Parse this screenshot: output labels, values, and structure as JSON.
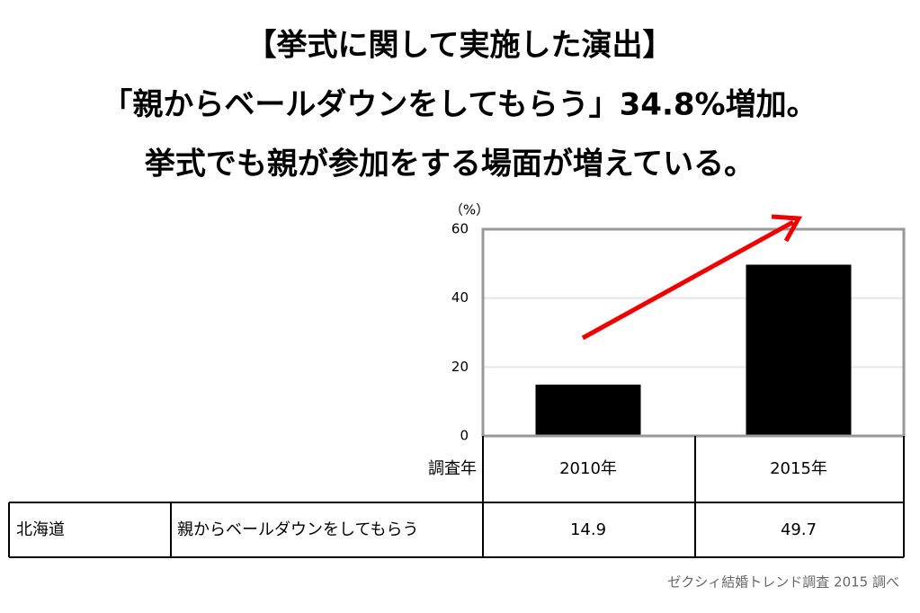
{
  "chart_data": {
    "type": "bar",
    "title": [
      "【挙式に関して実施した演出】",
      "「親からベールダウンをしてもらう」34.8%増加。",
      "挙式でも親が参加をする場面が増えている。"
    ],
    "y_label": "（%）",
    "x_label": "調査年",
    "region": "北海道",
    "categories": [
      "2010年",
      "2015年"
    ],
    "series": [
      {
        "name": "親からベールダウンをしてもらう",
        "color": "#000000",
        "values": [
          14.9,
          49.7
        ]
      }
    ],
    "ylim": [
      0,
      60
    ],
    "yticks": [
      0,
      20,
      40,
      60
    ],
    "grid": true,
    "source": "ゼクシィ結婚トレンド調査 2015 調べ"
  }
}
